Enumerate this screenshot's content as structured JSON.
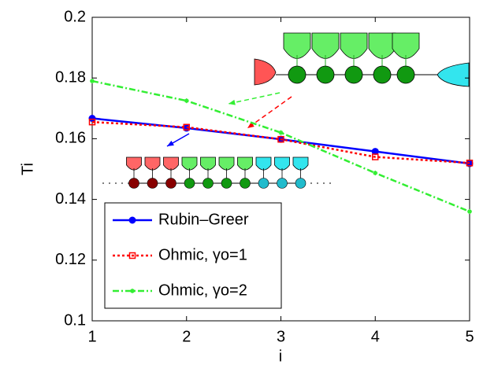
{
  "chart_data": {
    "type": "line",
    "x_label": "i",
    "y_label": "Ti",
    "x": [
      1,
      2,
      3,
      4,
      5
    ],
    "series": [
      {
        "name": "Rubin–Greer",
        "color": "#0000ff",
        "marker": "circle",
        "dash": "solid",
        "values": [
          0.1667,
          0.1635,
          0.1598,
          0.1558,
          0.1518
        ]
      },
      {
        "name": "Ohmic, γo=1",
        "color": "#ff0000",
        "marker": "square",
        "dash": "dotted",
        "values": [
          0.1655,
          0.1638,
          0.1598,
          0.154,
          0.152
        ]
      },
      {
        "name": "Ohmic, γo=2",
        "color": "#33ee33",
        "marker": "star",
        "dash": "dashdot",
        "values": [
          0.179,
          0.1725,
          0.162,
          0.1487,
          0.136
        ]
      }
    ],
    "xlim": [
      1,
      5
    ],
    "xticks": [
      1,
      2,
      3,
      4,
      5
    ],
    "ylim": [
      0.1,
      0.2
    ],
    "yticks": [
      0.1,
      0.12,
      0.14,
      0.16,
      0.18,
      0.2
    ],
    "grid": false,
    "legend": "lower left"
  }
}
